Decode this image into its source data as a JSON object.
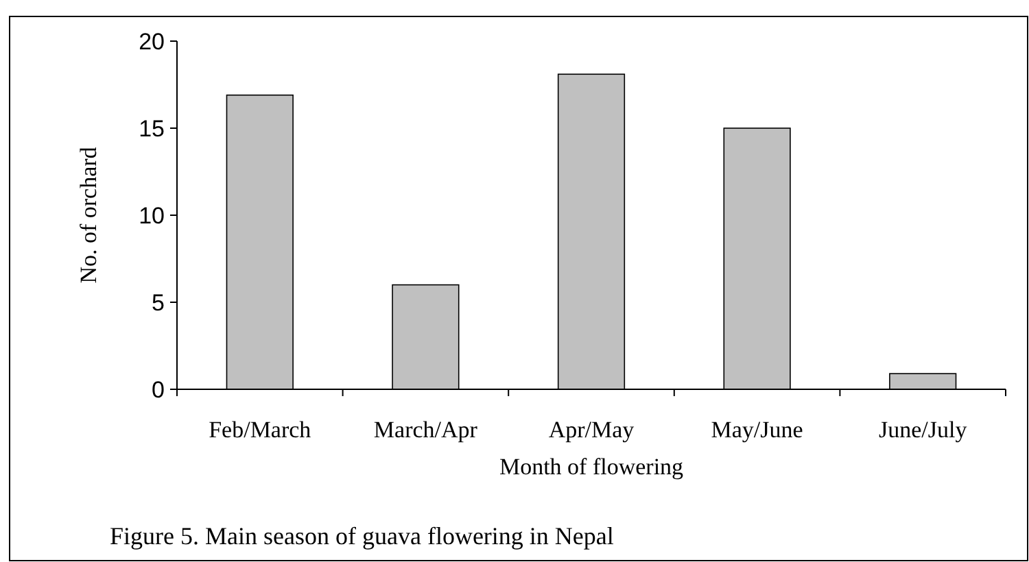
{
  "chart_data": {
    "type": "bar",
    "categories": [
      "Feb/March",
      "March/Apr",
      "Apr/May",
      "May/June",
      "June/July"
    ],
    "values": [
      16.9,
      6,
      18.1,
      15,
      0.9
    ],
    "color": "#c0c0c0",
    "xlabel": "Month of flowering",
    "ylabel": "No. of orchard",
    "ylim": [
      0,
      20
    ],
    "yticks": [
      0,
      5,
      10,
      15,
      20
    ],
    "annotations": [
      "Figure 5. Main season of guava flowering in Nepal"
    ]
  }
}
